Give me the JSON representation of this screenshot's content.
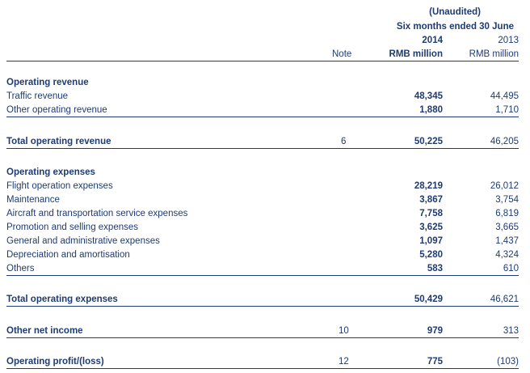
{
  "header": {
    "unaudited": "(Unaudited)",
    "period": "Six months ended 30 June",
    "year_current": "2014",
    "year_prior": "2013",
    "note": "Note",
    "unit_current": "RMB million",
    "unit_prior": "RMB million"
  },
  "revenue": {
    "title": "Operating revenue",
    "rows": [
      {
        "label": "Traffic revenue",
        "note": "",
        "current": "48,345",
        "prior": "44,495"
      },
      {
        "label": "Other operating revenue",
        "note": "",
        "current": "1,880",
        "prior": "1,710"
      }
    ],
    "total": {
      "label": "Total operating revenue",
      "note": "6",
      "current": "50,225",
      "prior": "46,205"
    }
  },
  "expenses": {
    "title": "Operating expenses",
    "rows": [
      {
        "label": "Flight operation expenses",
        "current": "28,219",
        "prior": "26,012"
      },
      {
        "label": "Maintenance",
        "current": "3,867",
        "prior": "3,754"
      },
      {
        "label": "Aircraft and transportation service expenses",
        "current": "7,758",
        "prior": "6,819"
      },
      {
        "label": "Promotion and selling expenses",
        "current": "3,625",
        "prior": "3,665"
      },
      {
        "label": "General and administrative expenses",
        "current": "1,097",
        "prior": "1,437"
      },
      {
        "label": "Depreciation and amortisation",
        "current": "5,280",
        "prior": "4,324"
      },
      {
        "label": "Others",
        "current": "583",
        "prior": "610"
      }
    ],
    "total": {
      "label": "Total operating expenses",
      "note": "",
      "current": "50,429",
      "prior": "46,621"
    }
  },
  "other_income": {
    "label": "Other net income",
    "note": "10",
    "current": "979",
    "prior": "313"
  },
  "operating_profit": {
    "label": "Operating profit/(loss)",
    "note": "12",
    "current": "775",
    "prior": "(103)"
  }
}
